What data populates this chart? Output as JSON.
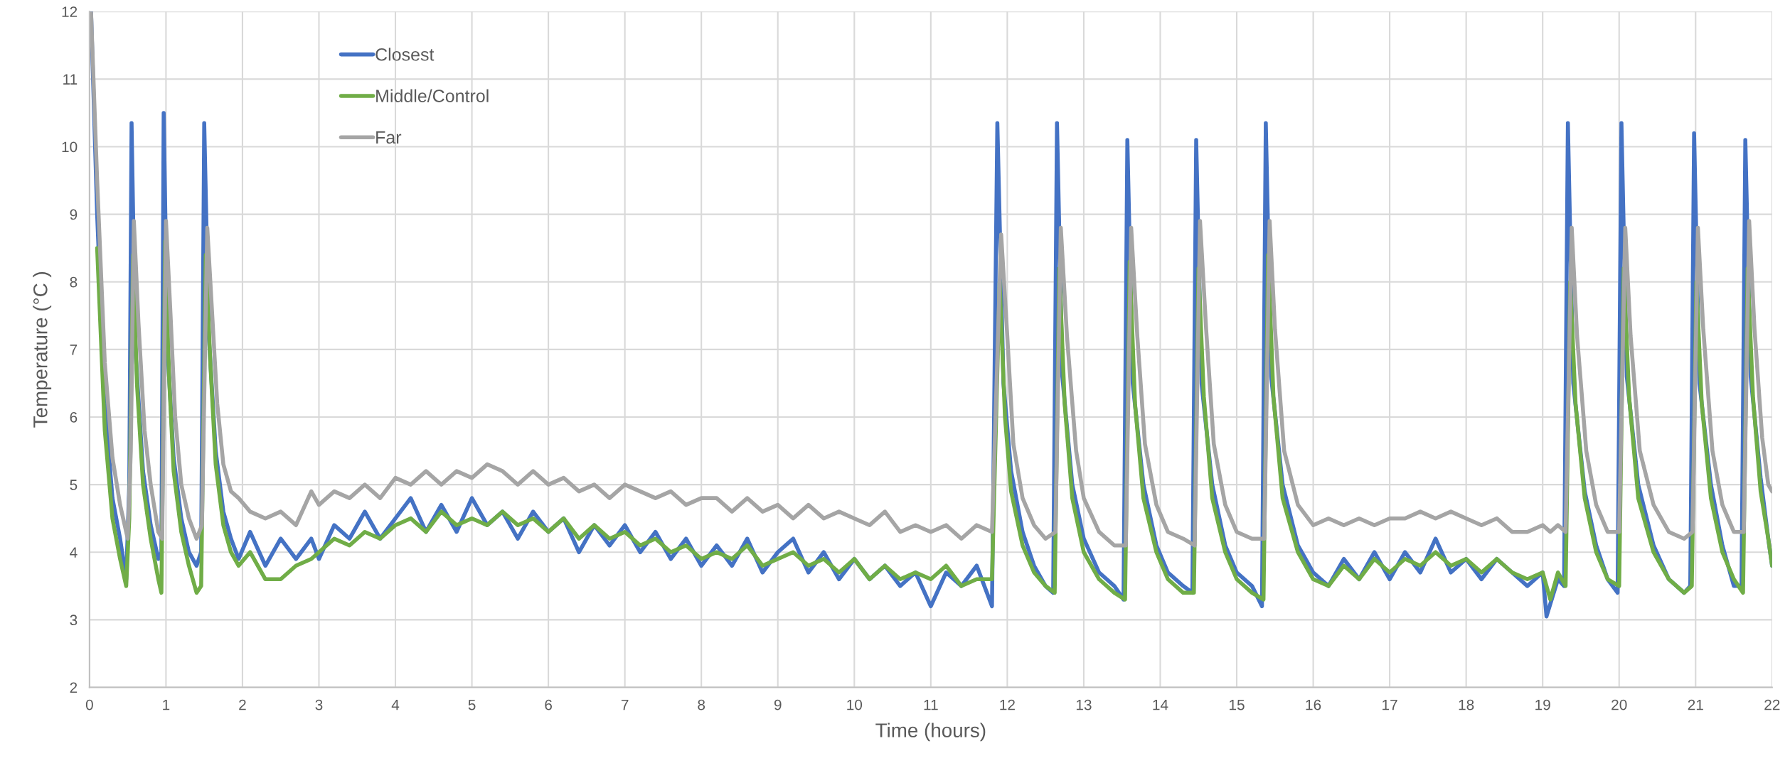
{
  "chart_data": {
    "type": "line",
    "xlabel": "Time (hours)",
    "ylabel": "Temperature (°C )",
    "xlim": [
      0,
      22
    ],
    "xticks": [
      0,
      1,
      2,
      3,
      4,
      5,
      6,
      7,
      8,
      9,
      10,
      11,
      12,
      13,
      14,
      15,
      16,
      17,
      18,
      19,
      20,
      21,
      22
    ],
    "ylim": [
      2,
      12
    ],
    "yticks": [
      2,
      3,
      4,
      5,
      6,
      7,
      8,
      9,
      10,
      11,
      12
    ],
    "grid": true,
    "legend": "top left",
    "marker": "none",
    "line_style": "solid",
    "series": [
      {
        "name": "Closest",
        "color": "#4472c4",
        "x": [
          0.02,
          0.1,
          0.2,
          0.3,
          0.4,
          0.48,
          0.52,
          0.55,
          0.6,
          0.7,
          0.8,
          0.9,
          0.94,
          0.97,
          1.02,
          1.1,
          1.2,
          1.3,
          1.4,
          1.46,
          1.5,
          1.56,
          1.65,
          1.75,
          1.85,
          1.95,
          2.1,
          2.3,
          2.5,
          2.7,
          2.9,
          3.0,
          3.2,
          3.4,
          3.6,
          3.8,
          4.0,
          4.2,
          4.4,
          4.6,
          4.8,
          5.0,
          5.2,
          5.4,
          5.6,
          5.8,
          6.0,
          6.2,
          6.4,
          6.6,
          6.8,
          7.0,
          7.2,
          7.4,
          7.6,
          7.8,
          8.0,
          8.2,
          8.4,
          8.6,
          8.8,
          9.0,
          9.2,
          9.4,
          9.6,
          9.8,
          10.0,
          10.2,
          10.4,
          10.6,
          10.8,
          11.0,
          11.2,
          11.4,
          11.6,
          11.8,
          11.87,
          11.95,
          12.05,
          12.2,
          12.35,
          12.5,
          12.6,
          12.65,
          12.72,
          12.85,
          13.0,
          13.2,
          13.4,
          13.52,
          13.57,
          13.64,
          13.78,
          13.95,
          14.1,
          14.3,
          14.42,
          14.47,
          14.54,
          14.68,
          14.85,
          15.0,
          15.2,
          15.33,
          15.38,
          15.45,
          15.6,
          15.8,
          16.0,
          16.2,
          16.4,
          16.6,
          16.8,
          17.0,
          17.2,
          17.4,
          17.6,
          17.8,
          18.0,
          18.2,
          18.4,
          18.6,
          18.8,
          19.0,
          19.05,
          19.2,
          19.28,
          19.33,
          19.4,
          19.55,
          19.7,
          19.85,
          19.98,
          20.03,
          20.1,
          20.25,
          20.45,
          20.65,
          20.85,
          20.93,
          20.98,
          21.05,
          21.2,
          21.35,
          21.5,
          21.6,
          21.65,
          21.72,
          21.85,
          21.95,
          22.0
        ],
        "values": [
          12,
          9,
          6.2,
          4.8,
          4.2,
          3.6,
          5,
          10.35,
          7,
          5.2,
          4.4,
          3.9,
          4,
          10.5,
          7,
          5.4,
          4.5,
          4,
          3.8,
          4,
          10.35,
          7.2,
          5.5,
          4.6,
          4.2,
          3.9,
          4.3,
          3.8,
          4.2,
          3.9,
          4.2,
          3.9,
          4.4,
          4.2,
          4.6,
          4.2,
          4.5,
          4.8,
          4.3,
          4.7,
          4.3,
          4.8,
          4.4,
          4.6,
          4.2,
          4.6,
          4.3,
          4.5,
          4.0,
          4.4,
          4.1,
          4.4,
          4.0,
          4.3,
          3.9,
          4.2,
          3.8,
          4.1,
          3.8,
          4.2,
          3.7,
          4.0,
          4.2,
          3.7,
          4.0,
          3.6,
          3.9,
          3.6,
          3.8,
          3.5,
          3.7,
          3.2,
          3.7,
          3.5,
          3.8,
          3.2,
          10.35,
          6.5,
          5.2,
          4.3,
          3.8,
          3.5,
          3.4,
          10.35,
          6.6,
          5,
          4.2,
          3.7,
          3.5,
          3.3,
          10.1,
          6.5,
          5,
          4.1,
          3.7,
          3.5,
          3.4,
          10.1,
          6.5,
          5,
          4.1,
          3.7,
          3.5,
          3.2,
          10.35,
          6.6,
          5,
          4.1,
          3.7,
          3.5,
          3.9,
          3.6,
          4.0,
          3.6,
          4.0,
          3.7,
          4.2,
          3.7,
          3.9,
          3.6,
          3.9,
          3.7,
          3.5,
          3.7,
          3.05,
          3.6,
          3.5,
          10.35,
          6.5,
          4.9,
          4.1,
          3.6,
          3.4,
          10.35,
          6.6,
          5,
          4.1,
          3.6,
          3.4,
          3.5,
          10.2,
          6.5,
          5,
          4.1,
          3.5,
          3.5,
          10.1,
          6.6,
          5.1,
          4.2,
          3.8
        ]
      },
      {
        "name": "Middle/Control",
        "color": "#70ad47",
        "x": [
          0.1,
          0.2,
          0.3,
          0.4,
          0.48,
          0.52,
          0.57,
          0.62,
          0.7,
          0.8,
          0.9,
          0.94,
          0.99,
          1.04,
          1.1,
          1.2,
          1.3,
          1.4,
          1.46,
          1.52,
          1.58,
          1.65,
          1.75,
          1.85,
          1.95,
          2.1,
          2.3,
          2.5,
          2.7,
          2.9,
          3.0,
          3.2,
          3.4,
          3.6,
          3.8,
          4.0,
          4.2,
          4.4,
          4.6,
          4.8,
          5.0,
          5.2,
          5.4,
          5.6,
          5.8,
          6.0,
          6.2,
          6.4,
          6.6,
          6.8,
          7.0,
          7.2,
          7.4,
          7.6,
          7.8,
          8.0,
          8.2,
          8.4,
          8.6,
          8.8,
          9.0,
          9.2,
          9.4,
          9.6,
          9.8,
          10.0,
          10.2,
          10.4,
          10.6,
          10.8,
          11.0,
          11.2,
          11.4,
          11.6,
          11.8,
          11.9,
          11.97,
          12.05,
          12.2,
          12.35,
          12.5,
          12.62,
          12.68,
          12.75,
          12.85,
          13.0,
          13.2,
          13.4,
          13.54,
          13.6,
          13.67,
          13.78,
          13.95,
          14.1,
          14.3,
          14.44,
          14.5,
          14.57,
          14.68,
          14.85,
          15.0,
          15.2,
          15.35,
          15.41,
          15.48,
          15.6,
          15.8,
          16.0,
          16.2,
          16.4,
          16.6,
          16.8,
          17.0,
          17.2,
          17.4,
          17.6,
          17.8,
          18.0,
          18.2,
          18.4,
          18.6,
          18.8,
          19.0,
          19.1,
          19.2,
          19.3,
          19.36,
          19.43,
          19.55,
          19.7,
          19.85,
          20.0,
          20.06,
          20.13,
          20.25,
          20.45,
          20.65,
          20.85,
          20.95,
          21.01,
          21.08,
          21.2,
          21.35,
          21.5,
          21.62,
          21.68,
          21.75,
          21.85,
          21.95,
          22.0
        ],
        "values": [
          8.5,
          5.8,
          4.5,
          3.9,
          3.5,
          4.5,
          8.4,
          6.5,
          5.0,
          4.2,
          3.6,
          3.4,
          8.6,
          6.6,
          5.2,
          4.3,
          3.8,
          3.4,
          3.5,
          8.4,
          6.8,
          5.3,
          4.4,
          4.0,
          3.8,
          4.0,
          3.6,
          3.6,
          3.8,
          3.9,
          4.0,
          4.2,
          4.1,
          4.3,
          4.2,
          4.4,
          4.5,
          4.3,
          4.6,
          4.4,
          4.5,
          4.4,
          4.6,
          4.4,
          4.5,
          4.3,
          4.5,
          4.2,
          4.4,
          4.2,
          4.3,
          4.1,
          4.2,
          4.0,
          4.1,
          3.9,
          4.0,
          3.9,
          4.1,
          3.8,
          3.9,
          4.0,
          3.8,
          3.9,
          3.7,
          3.9,
          3.6,
          3.8,
          3.6,
          3.7,
          3.6,
          3.8,
          3.5,
          3.6,
          3.6,
          8.0,
          6.0,
          4.9,
          4.1,
          3.7,
          3.5,
          3.4,
          8.2,
          6.2,
          4.8,
          4.0,
          3.6,
          3.4,
          3.3,
          8.3,
          6.2,
          4.8,
          4.0,
          3.6,
          3.4,
          3.4,
          8.2,
          6.3,
          4.8,
          4.0,
          3.6,
          3.4,
          3.3,
          8.4,
          6.3,
          4.8,
          4.0,
          3.6,
          3.5,
          3.8,
          3.6,
          3.9,
          3.7,
          3.9,
          3.8,
          4.0,
          3.8,
          3.9,
          3.7,
          3.9,
          3.7,
          3.6,
          3.7,
          3.3,
          3.7,
          3.5,
          8.0,
          6.2,
          4.8,
          4.0,
          3.6,
          3.5,
          8.2,
          6.3,
          4.8,
          4.0,
          3.6,
          3.4,
          3.5,
          8.0,
          6.2,
          4.8,
          4.0,
          3.6,
          3.4,
          8.2,
          6.3,
          4.9,
          4.2,
          3.8
        ]
      },
      {
        "name": "Far",
        "color": "#a5a5a5",
        "x": [
          0.02,
          0.1,
          0.2,
          0.3,
          0.4,
          0.5,
          0.54,
          0.58,
          0.64,
          0.72,
          0.8,
          0.9,
          0.95,
          1.0,
          1.06,
          1.12,
          1.2,
          1.3,
          1.4,
          1.47,
          1.54,
          1.6,
          1.67,
          1.75,
          1.85,
          1.95,
          2.1,
          2.3,
          2.5,
          2.7,
          2.9,
          3.0,
          3.2,
          3.4,
          3.6,
          3.8,
          4.0,
          4.2,
          4.4,
          4.6,
          4.8,
          5.0,
          5.2,
          5.4,
          5.6,
          5.8,
          6.0,
          6.2,
          6.4,
          6.6,
          6.8,
          7.0,
          7.2,
          7.4,
          7.6,
          7.8,
          8.0,
          8.2,
          8.4,
          8.6,
          8.8,
          9.0,
          9.2,
          9.4,
          9.6,
          9.8,
          10.0,
          10.2,
          10.4,
          10.6,
          10.8,
          11.0,
          11.2,
          11.4,
          11.6,
          11.8,
          11.92,
          12.0,
          12.08,
          12.2,
          12.35,
          12.5,
          12.63,
          12.7,
          12.78,
          12.9,
          13.0,
          13.2,
          13.4,
          13.55,
          13.62,
          13.7,
          13.8,
          13.95,
          14.1,
          14.3,
          14.45,
          14.52,
          14.6,
          14.7,
          14.85,
          15.0,
          15.2,
          15.36,
          15.43,
          15.5,
          15.62,
          15.8,
          16.0,
          16.2,
          16.4,
          16.6,
          16.8,
          17.0,
          17.2,
          17.4,
          17.6,
          17.8,
          18.0,
          18.2,
          18.4,
          18.6,
          18.8,
          19.0,
          19.1,
          19.2,
          19.3,
          19.38,
          19.45,
          19.57,
          19.7,
          19.85,
          20.0,
          20.08,
          20.15,
          20.27,
          20.45,
          20.65,
          20.85,
          20.96,
          21.03,
          21.1,
          21.22,
          21.35,
          21.5,
          21.63,
          21.7,
          21.77,
          21.87,
          21.95,
          22.0
        ],
        "values": [
          12,
          9.5,
          6.8,
          5.4,
          4.7,
          4.2,
          5.5,
          8.9,
          7.4,
          5.8,
          5.0,
          4.3,
          4.2,
          8.9,
          7.5,
          6.0,
          5.0,
          4.5,
          4.2,
          4.4,
          8.8,
          7.6,
          6.2,
          5.3,
          4.9,
          4.8,
          4.6,
          4.5,
          4.6,
          4.4,
          4.9,
          4.7,
          4.9,
          4.8,
          5.0,
          4.8,
          5.1,
          5.0,
          5.2,
          5.0,
          5.2,
          5.1,
          5.3,
          5.2,
          5.0,
          5.2,
          5.0,
          5.1,
          4.9,
          5.0,
          4.8,
          5.0,
          4.9,
          4.8,
          4.9,
          4.7,
          4.8,
          4.8,
          4.6,
          4.8,
          4.6,
          4.7,
          4.5,
          4.7,
          4.5,
          4.6,
          4.5,
          4.4,
          4.6,
          4.3,
          4.4,
          4.3,
          4.4,
          4.2,
          4.4,
          4.3,
          8.7,
          7.2,
          5.6,
          4.8,
          4.4,
          4.2,
          4.3,
          8.8,
          7.2,
          5.5,
          4.8,
          4.3,
          4.1,
          4.1,
          8.8,
          7.2,
          5.6,
          4.7,
          4.3,
          4.2,
          4.1,
          8.9,
          7.3,
          5.6,
          4.7,
          4.3,
          4.2,
          4.2,
          8.9,
          7.3,
          5.5,
          4.7,
          4.4,
          4.5,
          4.4,
          4.5,
          4.4,
          4.5,
          4.5,
          4.6,
          4.5,
          4.6,
          4.5,
          4.4,
          4.5,
          4.3,
          4.3,
          4.4,
          4.3,
          4.4,
          4.3,
          8.8,
          7.2,
          5.5,
          4.7,
          4.3,
          4.3,
          8.8,
          7.2,
          5.5,
          4.7,
          4.3,
          4.2,
          4.3,
          8.8,
          7.3,
          5.5,
          4.7,
          4.3,
          4.3,
          8.9,
          7.3,
          5.7,
          5.0,
          4.9
        ]
      }
    ]
  }
}
